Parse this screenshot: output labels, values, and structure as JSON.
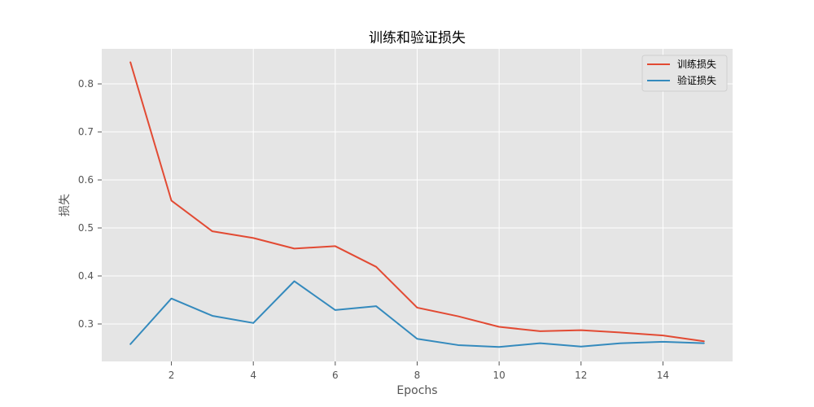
{
  "chart_data": {
    "type": "line",
    "title": "训练和验证损失",
    "xlabel": "Epochs",
    "ylabel": "损失",
    "xlim": [
      0.3,
      15.7
    ],
    "ylim": [
      0.222,
      0.873
    ],
    "x": [
      1,
      2,
      3,
      4,
      5,
      6,
      7,
      8,
      9,
      10,
      11,
      12,
      13,
      14,
      15
    ],
    "x_ticks": [
      2,
      4,
      6,
      8,
      10,
      12,
      14
    ],
    "x_tick_labels": [
      "2",
      "4",
      "6",
      "8",
      "10",
      "12",
      "14"
    ],
    "y_ticks": [
      0.3,
      0.4,
      0.5,
      0.6,
      0.7,
      0.8
    ],
    "y_tick_labels": [
      "0.3",
      "0.4",
      "0.5",
      "0.6",
      "0.7",
      "0.8"
    ],
    "grid": true,
    "legend_position": "top-right",
    "series": [
      {
        "name": "训练损失",
        "color": "#E24A33",
        "values": [
          0.845,
          0.557,
          0.493,
          0.479,
          0.457,
          0.462,
          0.419,
          0.334,
          0.316,
          0.294,
          0.285,
          0.287,
          0.282,
          0.276,
          0.264
        ]
      },
      {
        "name": "验证损失",
        "color": "#348ABD",
        "values": [
          0.258,
          0.353,
          0.317,
          0.302,
          0.389,
          0.329,
          0.337,
          0.269,
          0.256,
          0.252,
          0.26,
          0.253,
          0.26,
          0.263,
          0.26
        ]
      }
    ]
  }
}
